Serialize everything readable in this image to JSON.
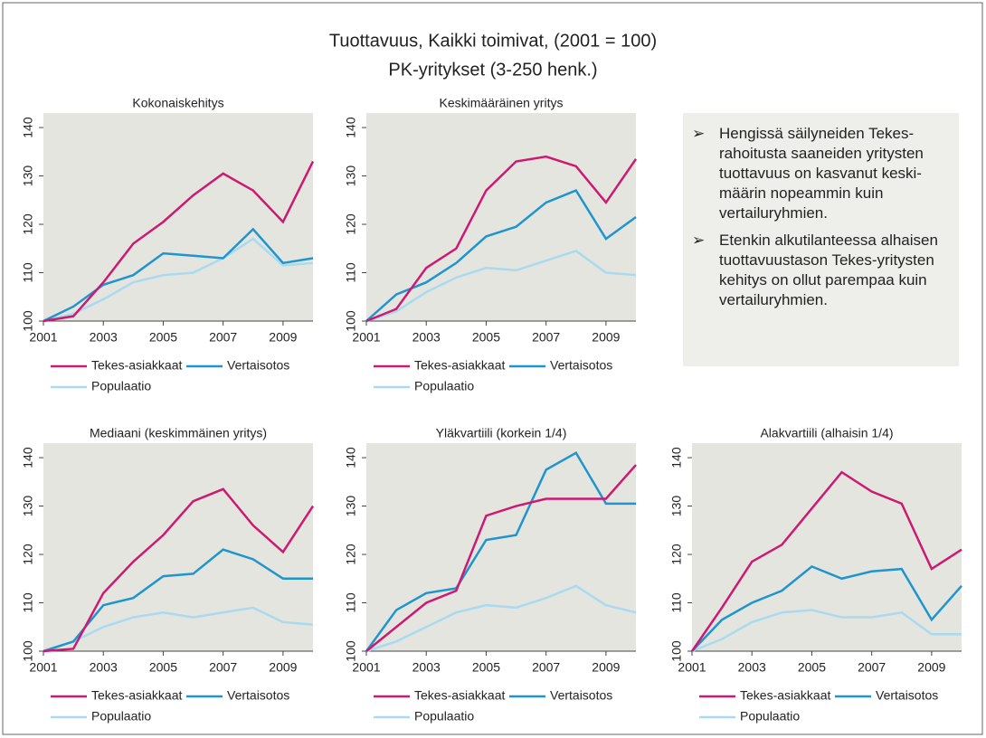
{
  "title": "Tuottavuus, Kaikki toimivat, (2001 = 100)",
  "subtitle": "PK-yritykset (3-250 henk.)",
  "notes": [
    "Hengissä säilyneiden Tekes-rahoitusta saaneiden yritysten tuottavuus on kasvanut keski-määrin nopeammin kuin vertailuryhmien.",
    "Etenkin alkutilanteessa alhaisen tuottavuustason Tekes-yritysten kehitys on ollut parempaa kuin vertailuryhmien."
  ],
  "chart_data": [
    {
      "type": "line",
      "title": "Kokonaiskehitys",
      "x": [
        2001,
        2002,
        2003,
        2004,
        2005,
        2006,
        2007,
        2008,
        2009,
        2010
      ],
      "xlim": [
        2001,
        2010
      ],
      "xticks": [
        2001,
        2003,
        2005,
        2007,
        2009
      ],
      "ylim": [
        100,
        143
      ],
      "yticks": [
        100,
        110,
        120,
        130,
        140
      ],
      "series": [
        {
          "name": "Tekes-asiakkaat",
          "color": "#cc1a72",
          "values": [
            100,
            101,
            108,
            116,
            120.5,
            126,
            130.5,
            127,
            120.5,
            133
          ]
        },
        {
          "name": "Vertaisotos",
          "color": "#1f95cf",
          "values": [
            100,
            103,
            107.5,
            109.5,
            114,
            113.5,
            113,
            119,
            112,
            113
          ]
        },
        {
          "name": "Populaatio",
          "color": "#a9daf0",
          "values": [
            100,
            101.5,
            104.5,
            108,
            109.5,
            110,
            113,
            117,
            111.5,
            112
          ]
        }
      ]
    },
    {
      "type": "line",
      "title": "Keskimääräinen yritys",
      "x": [
        2001,
        2002,
        2003,
        2004,
        2005,
        2006,
        2007,
        2008,
        2009,
        2010
      ],
      "xlim": [
        2001,
        2010
      ],
      "xticks": [
        2001,
        2003,
        2005,
        2007,
        2009
      ],
      "ylim": [
        100,
        143
      ],
      "yticks": [
        100,
        110,
        120,
        130,
        140
      ],
      "series": [
        {
          "name": "Tekes-asiakkaat",
          "color": "#cc1a72",
          "values": [
            100,
            102.5,
            111,
            115,
            127,
            133,
            134,
            132,
            124.5,
            133.5
          ]
        },
        {
          "name": "Vertaisotos",
          "color": "#1f95cf",
          "values": [
            100,
            105.5,
            108,
            112,
            117.5,
            119.5,
            124.5,
            127,
            117,
            121.5
          ]
        },
        {
          "name": "Populaatio",
          "color": "#a9daf0",
          "values": [
            100,
            102,
            106,
            109,
            111,
            110.5,
            112.5,
            114.5,
            110,
            109.5
          ]
        }
      ]
    },
    {
      "type": "line",
      "title": "Mediaani (keskimmäinen yritys)",
      "x": [
        2001,
        2002,
        2003,
        2004,
        2005,
        2006,
        2007,
        2008,
        2009,
        2010
      ],
      "xlim": [
        2001,
        2010
      ],
      "xticks": [
        2001,
        2003,
        2005,
        2007,
        2009
      ],
      "ylim": [
        100,
        143
      ],
      "yticks": [
        100,
        110,
        120,
        130,
        140
      ],
      "series": [
        {
          "name": "Tekes-asiakkaat",
          "color": "#cc1a72",
          "values": [
            100,
            100.5,
            112,
            118.5,
            124,
            131,
            133.5,
            126,
            120.5,
            130
          ]
        },
        {
          "name": "Vertaisotos",
          "color": "#1f95cf",
          "values": [
            100,
            102,
            109.5,
            111,
            115.5,
            116,
            121,
            119,
            115,
            115
          ]
        },
        {
          "name": "Populaatio",
          "color": "#a9daf0",
          "values": [
            100,
            102,
            105,
            107,
            108,
            107,
            108,
            109,
            106,
            105.5
          ]
        }
      ]
    },
    {
      "type": "line",
      "title": "Yläkvartiili (korkein 1/4)",
      "x": [
        2001,
        2002,
        2003,
        2004,
        2005,
        2006,
        2007,
        2008,
        2009,
        2010
      ],
      "xlim": [
        2001,
        2010
      ],
      "xticks": [
        2001,
        2003,
        2005,
        2007,
        2009
      ],
      "ylim": [
        100,
        143
      ],
      "yticks": [
        100,
        110,
        120,
        130,
        140
      ],
      "series": [
        {
          "name": "Tekes-asiakkaat",
          "color": "#cc1a72",
          "values": [
            100,
            105,
            110,
            112.5,
            128,
            130,
            131.5,
            131.5,
            131.5,
            138.5
          ]
        },
        {
          "name": "Vertaisotos",
          "color": "#1f95cf",
          "values": [
            100,
            108.5,
            112,
            113,
            123,
            124,
            137.5,
            141,
            130.5,
            130.5
          ]
        },
        {
          "name": "Populaatio",
          "color": "#a9daf0",
          "values": [
            100,
            102,
            105,
            108,
            109.5,
            109,
            111,
            113.5,
            109.5,
            108
          ]
        }
      ]
    },
    {
      "type": "line",
      "title": "Alakvartiili (alhaisin 1/4)",
      "x": [
        2001,
        2002,
        2003,
        2004,
        2005,
        2006,
        2007,
        2008,
        2009,
        2010
      ],
      "xlim": [
        2001,
        2010
      ],
      "xticks": [
        2001,
        2003,
        2005,
        2007,
        2009
      ],
      "ylim": [
        100,
        143
      ],
      "yticks": [
        100,
        110,
        120,
        130,
        140
      ],
      "series": [
        {
          "name": "Tekes-asiakkaat",
          "color": "#cc1a72",
          "values": [
            100,
            109,
            118.5,
            122,
            129.5,
            137,
            133,
            130.5,
            117,
            121
          ]
        },
        {
          "name": "Vertaisotos",
          "color": "#1f95cf",
          "values": [
            100,
            106.5,
            110,
            112.5,
            117.5,
            115,
            116.5,
            117,
            106.5,
            113.5
          ]
        },
        {
          "name": "Populaatio",
          "color": "#a9daf0",
          "values": [
            100,
            102.5,
            106,
            108,
            108.5,
            107,
            107,
            108,
            103.5,
            103.5
          ]
        }
      ]
    }
  ]
}
